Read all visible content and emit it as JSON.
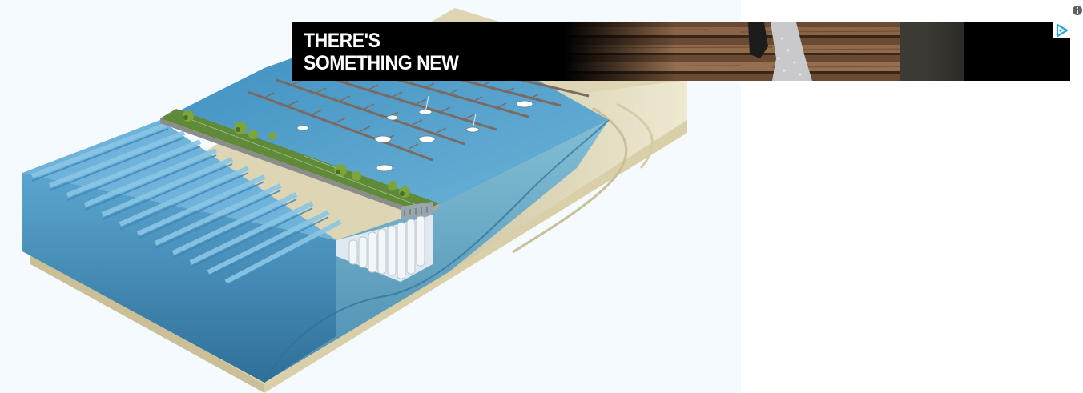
{
  "ad": {
    "headline_line1": "THERE'S",
    "headline_line2": "SOMETHING NEW",
    "background_color": "#000000",
    "text_color": "#ffffff",
    "adchoices_icon": "adchoices-triangle-icon",
    "adchoices_color": "#29a3dd"
  },
  "info": {
    "icon": "info-icon",
    "color": "#606060"
  },
  "illustration": {
    "subject": "breakwater-marina-cross-section",
    "water_color": "#4a98c4",
    "sand_color": "#e9e2c6",
    "park_color": "#5f8a3a"
  }
}
